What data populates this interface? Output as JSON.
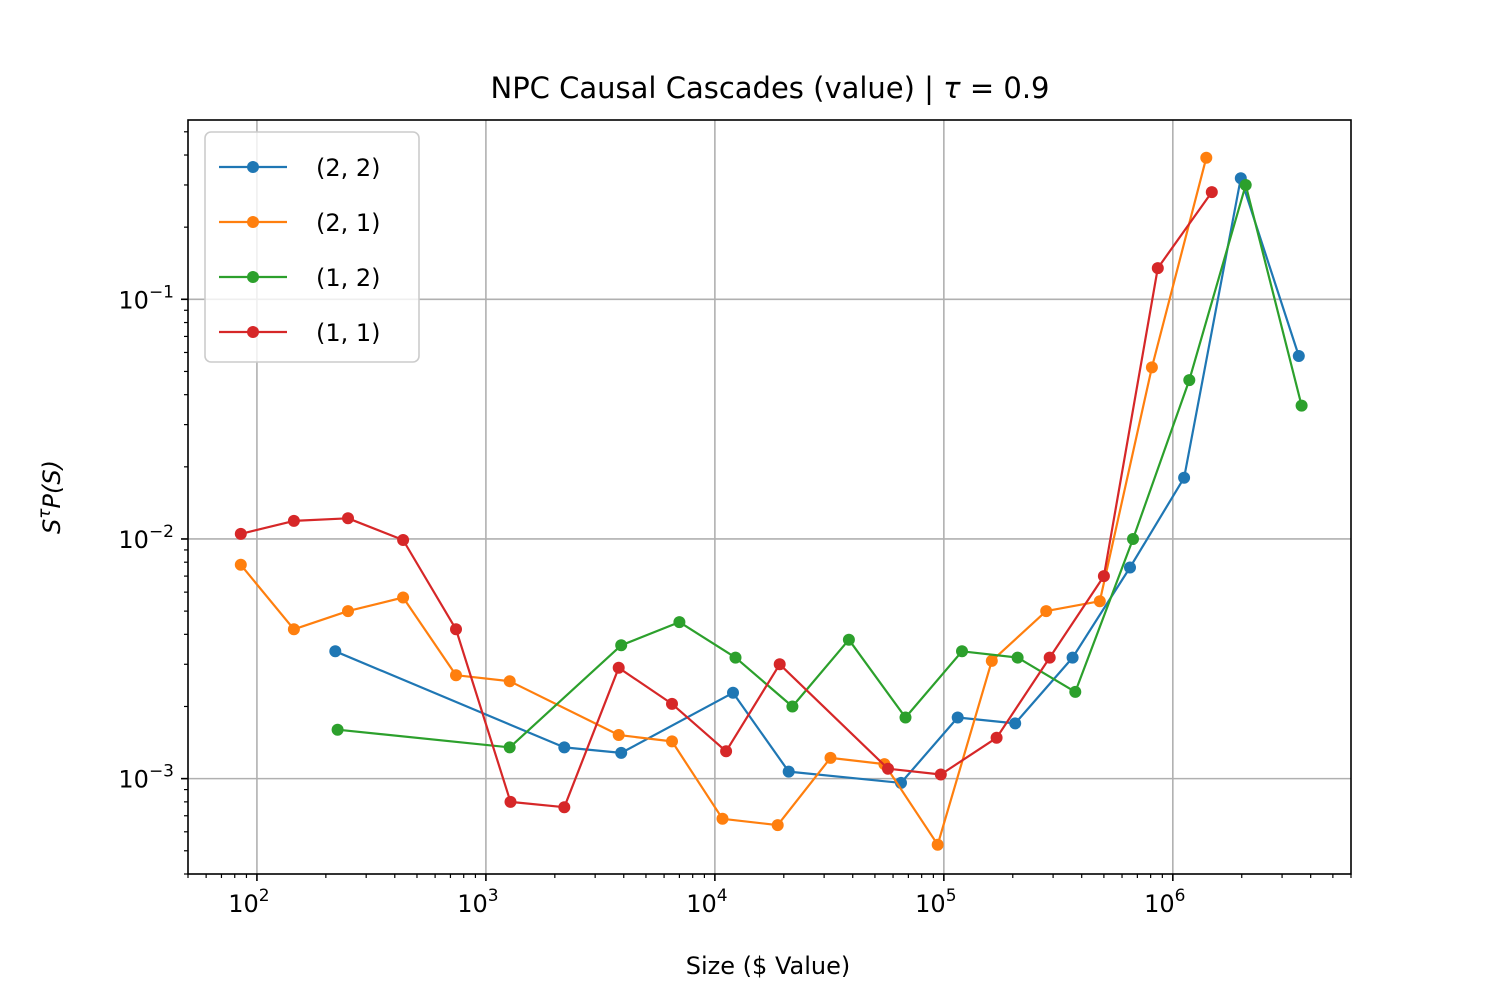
{
  "chart_data": {
    "type": "line",
    "title": "NPC Causal Cascades (value) | τ = 0.9",
    "xlabel": "Size ($ Value)",
    "ylabel": "S^τ P(S)",
    "xscale": "log",
    "yscale": "log",
    "xlim": [
      50,
      6000000
    ],
    "ylim": [
      0.0004,
      0.56
    ],
    "grid": true,
    "legend_position": "upper left",
    "x_ticks": [
      {
        "value": 100,
        "base": "10",
        "exp": "2"
      },
      {
        "value": 1000,
        "base": "10",
        "exp": "3"
      },
      {
        "value": 10000,
        "base": "10",
        "exp": "4"
      },
      {
        "value": 100000,
        "base": "10",
        "exp": "5"
      },
      {
        "value": 1000000,
        "base": "10",
        "exp": "6"
      }
    ],
    "y_ticks": [
      {
        "value": 0.001,
        "base": "10",
        "exp": "−3"
      },
      {
        "value": 0.01,
        "base": "10",
        "exp": "−2"
      },
      {
        "value": 0.1,
        "base": "10",
        "exp": "−1"
      }
    ],
    "series": [
      {
        "name": "(2, 2)",
        "color": "#1f77b4",
        "x": [
          220,
          2200,
          3900,
          12000,
          21000,
          65000,
          115000,
          205000,
          365000,
          650000,
          1120000,
          1980000,
          3550000
        ],
        "y": [
          0.0034,
          0.00135,
          0.00128,
          0.00228,
          0.00107,
          0.00096,
          0.0018,
          0.0017,
          0.0032,
          0.0076,
          0.018,
          0.32,
          0.058
        ]
      },
      {
        "name": "(2, 1)",
        "color": "#ff7f0e",
        "x": [
          85,
          145,
          250,
          435,
          740,
          1270,
          3800,
          6500,
          10800,
          18800,
          32000,
          55000,
          94000,
          162000,
          280000,
          480000,
          810000,
          1400000
        ],
        "y": [
          0.0078,
          0.0042,
          0.005,
          0.0057,
          0.0027,
          0.00255,
          0.00152,
          0.00143,
          0.00068,
          0.00064,
          0.00122,
          0.00115,
          0.00053,
          0.0031,
          0.005,
          0.0055,
          0.052,
          0.39
        ]
      },
      {
        "name": "(1, 2)",
        "color": "#2ca02c",
        "x": [
          225,
          1270,
          3900,
          7000,
          12300,
          21800,
          38500,
          68000,
          120000,
          210000,
          375000,
          670000,
          1180000,
          2080000,
          3650000
        ],
        "y": [
          0.0016,
          0.00135,
          0.0036,
          0.0045,
          0.0032,
          0.002,
          0.0038,
          0.0018,
          0.0034,
          0.0032,
          0.0023,
          0.01,
          0.046,
          0.3,
          0.036
        ]
      },
      {
        "name": "(1, 1)",
        "color": "#d62728",
        "x": [
          85,
          145,
          250,
          435,
          740,
          1280,
          2200,
          3800,
          6500,
          11200,
          19200,
          57000,
          97000,
          170000,
          290000,
          500000,
          860000,
          1480000
        ],
        "y": [
          0.0105,
          0.0119,
          0.0122,
          0.0099,
          0.0042,
          0.0008,
          0.00076,
          0.0029,
          0.00205,
          0.0013,
          0.003,
          0.0011,
          0.00104,
          0.00148,
          0.0032,
          0.007,
          0.135,
          0.28
        ]
      }
    ]
  }
}
